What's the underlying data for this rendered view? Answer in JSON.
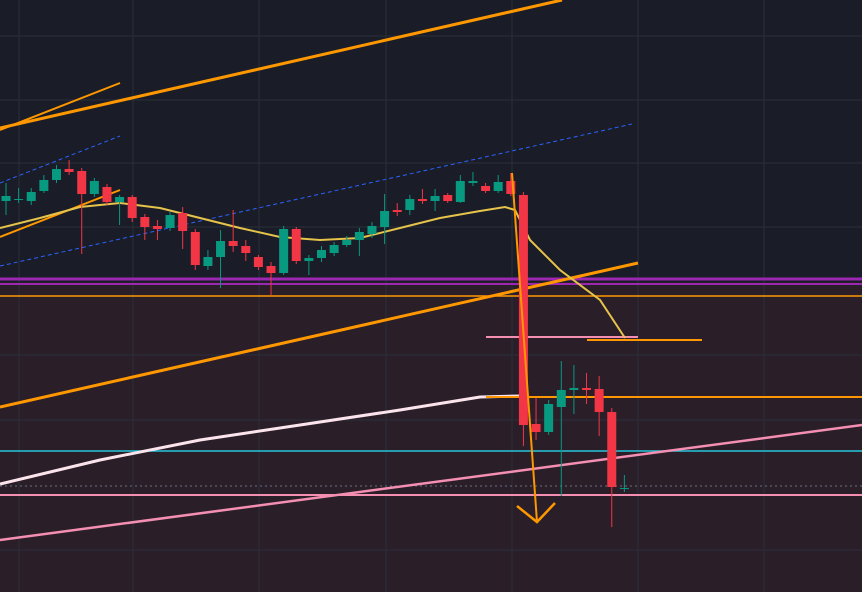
{
  "chart_data": {
    "type": "candlestick",
    "categories": [
      null,
      null,
      null,
      null,
      null,
      null,
      null,
      null,
      null,
      null,
      null,
      null,
      null,
      null,
      null,
      null,
      null,
      null,
      null,
      null,
      null,
      null,
      null,
      null,
      null,
      null,
      null,
      null,
      null,
      null,
      null,
      null,
      null,
      null,
      null,
      null,
      null,
      null,
      null,
      null,
      null,
      null,
      null,
      null,
      null,
      null,
      null,
      null,
      null,
      null
    ],
    "open": [
      391,
      392,
      391,
      401,
      412,
      423,
      421,
      398,
      405,
      390,
      395,
      375,
      366,
      364,
      379,
      360,
      326,
      335,
      351,
      346,
      335,
      326,
      319,
      363,
      331,
      334,
      339,
      347,
      352,
      358,
      365,
      382,
      382,
      393,
      391,
      397,
      390,
      409,
      406,
      401,
      411,
      397,
      168,
      160,
      185,
      202,
      204,
      203,
      180,
      103
    ],
    "close": [
      396,
      393,
      400,
      412,
      423,
      420,
      398,
      411,
      390,
      395,
      374,
      365,
      363,
      377,
      361,
      327,
      335,
      351,
      346,
      339,
      325,
      319,
      363,
      331,
      334,
      342,
      347,
      352,
      360,
      366,
      381,
      380,
      393,
      391,
      396,
      391,
      411,
      411,
      401,
      410,
      398,
      167,
      160,
      188,
      202,
      204,
      202,
      180,
      105,
      104
    ],
    "high": [
      409,
      404,
      404,
      417,
      427,
      432,
      424,
      414,
      408,
      397,
      397,
      378,
      372,
      380,
      385,
      363,
      342,
      362,
      382,
      352,
      337,
      330,
      366,
      365,
      337,
      346,
      350,
      356,
      364,
      370,
      398,
      389,
      397,
      403,
      403,
      399,
      417,
      420,
      409,
      417,
      419,
      400,
      194,
      192,
      231,
      227,
      219,
      216,
      184,
      117
    ],
    "low": [
      377,
      389,
      387,
      399,
      409,
      417,
      338,
      395,
      387,
      367,
      370,
      352,
      352,
      361,
      343,
      322,
      322,
      304,
      340,
      331,
      322,
      297,
      317,
      328,
      317,
      330,
      336,
      345,
      336,
      354,
      348,
      376,
      377,
      388,
      381,
      389,
      389,
      406,
      399,
      399,
      396,
      146,
      152,
      157,
      96,
      178,
      188,
      156,
      65,
      100
    ],
    "up_color": "#089981",
    "down_color": "#f23645",
    "ylim": [
      0,
      592
    ]
  }
}
